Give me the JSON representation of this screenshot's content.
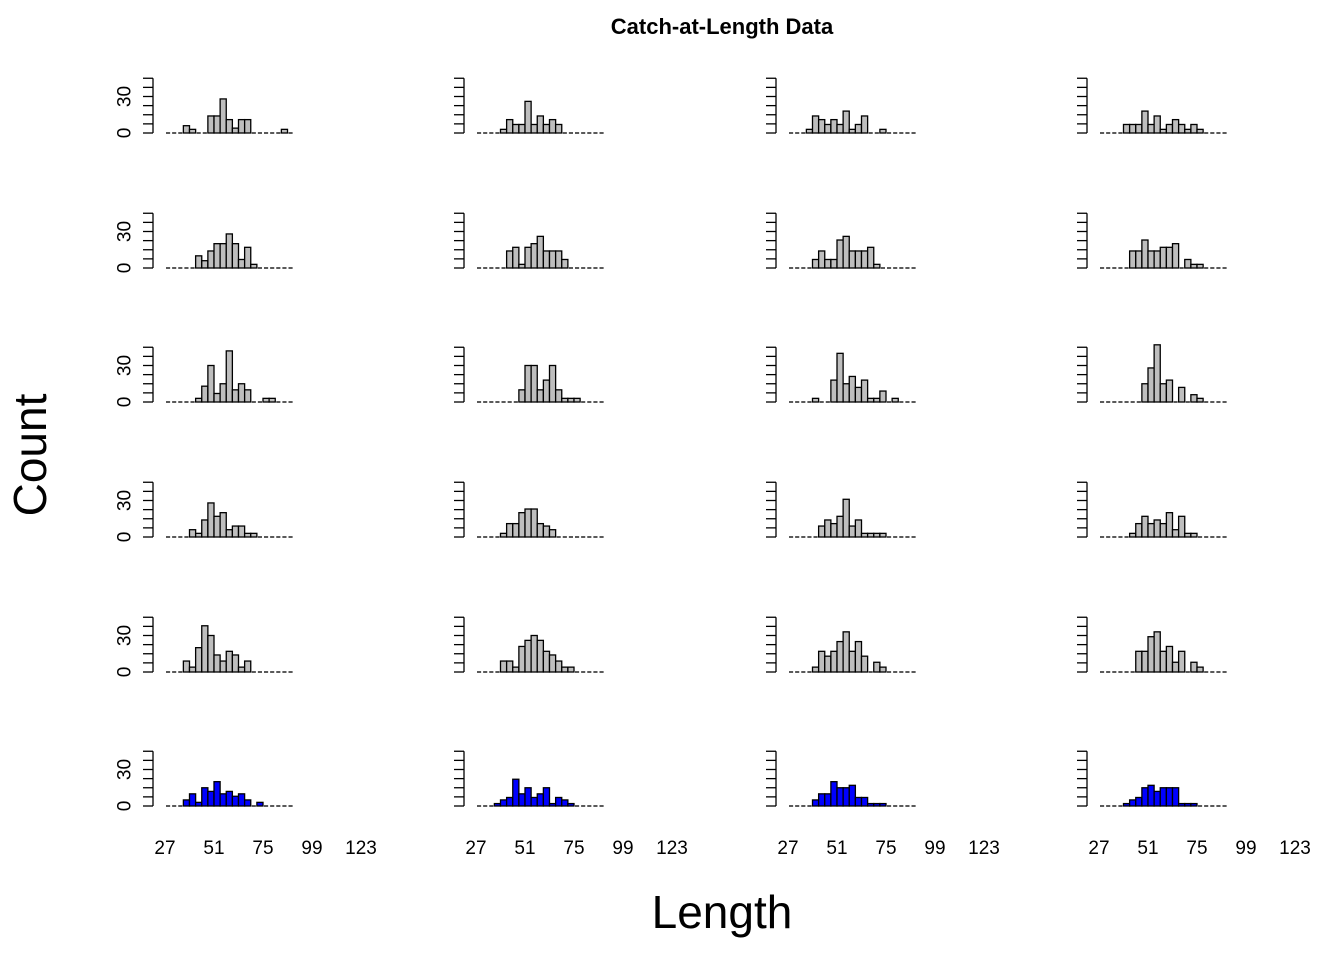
{
  "chart_data": {
    "type": "bar",
    "title": "Catch-at-Length Data",
    "xlabel": "Length",
    "ylabel": "Count",
    "layout": {
      "rows": 6,
      "cols": 4
    },
    "bin_width": 3,
    "xlim": [
      27,
      123
    ],
    "x_ticks": [
      "27",
      "51",
      "75",
      "99",
      "123"
    ],
    "y_ticks": [
      "0",
      "30"
    ],
    "ylim": [
      0,
      45
    ],
    "default_color": "#bebebe",
    "highlight_color": "#0000ff",
    "highlight_row": 6,
    "panels": [
      {
        "row": 1,
        "col": 1,
        "start": 30,
        "values": [
          0,
          0,
          6,
          3,
          0,
          0,
          14,
          14,
          28,
          11,
          4,
          11,
          11,
          0,
          0,
          0,
          0,
          0,
          3,
          0
        ]
      },
      {
        "row": 1,
        "col": 2,
        "start": 30,
        "values": [
          0,
          0,
          0,
          3,
          11,
          7,
          7,
          26,
          7,
          14,
          7,
          11,
          7,
          0,
          0,
          0,
          0,
          0,
          0,
          0
        ]
      },
      {
        "row": 1,
        "col": 3,
        "start": 30,
        "values": [
          0,
          0,
          3,
          14,
          11,
          7,
          11,
          7,
          18,
          3,
          7,
          14,
          0,
          0,
          3,
          0,
          0,
          0,
          0,
          0
        ]
      },
      {
        "row": 1,
        "col": 4,
        "start": 30,
        "values": [
          0,
          0,
          0,
          7,
          7,
          7,
          18,
          7,
          14,
          3,
          7,
          11,
          7,
          3,
          7,
          3,
          0,
          0,
          0,
          0
        ]
      },
      {
        "row": 2,
        "col": 1,
        "start": 30,
        "values": [
          0,
          0,
          0,
          0,
          10,
          6,
          14,
          20,
          20,
          28,
          20,
          7,
          17,
          3,
          0,
          0,
          0,
          0,
          0,
          0
        ]
      },
      {
        "row": 2,
        "col": 2,
        "start": 30,
        "values": [
          0,
          0,
          0,
          0,
          14,
          17,
          3,
          17,
          20,
          26,
          14,
          14,
          14,
          7,
          0,
          0,
          0,
          0,
          0,
          0
        ]
      },
      {
        "row": 2,
        "col": 3,
        "start": 30,
        "values": [
          0,
          0,
          0,
          7,
          14,
          7,
          7,
          23,
          26,
          14,
          14,
          14,
          17,
          3,
          0,
          0,
          0,
          0,
          0,
          0
        ]
      },
      {
        "row": 2,
        "col": 4,
        "start": 30,
        "values": [
          0,
          0,
          0,
          0,
          14,
          14,
          23,
          14,
          14,
          17,
          17,
          20,
          0,
          7,
          3,
          3,
          0,
          0,
          0,
          0
        ]
      },
      {
        "row": 3,
        "col": 1,
        "start": 30,
        "values": [
          0,
          0,
          0,
          0,
          3,
          13,
          30,
          7,
          15,
          42,
          10,
          15,
          10,
          0,
          0,
          3,
          3,
          0,
          0,
          0
        ]
      },
      {
        "row": 3,
        "col": 2,
        "start": 30,
        "values": [
          0,
          0,
          0,
          0,
          0,
          0,
          10,
          30,
          30,
          10,
          18,
          30,
          10,
          3,
          3,
          3,
          0,
          0,
          0,
          0
        ]
      },
      {
        "row": 3,
        "col": 3,
        "start": 30,
        "values": [
          0,
          0,
          0,
          3,
          0,
          0,
          18,
          40,
          15,
          21,
          12,
          18,
          3,
          3,
          9,
          0,
          3,
          0,
          0,
          0
        ]
      },
      {
        "row": 3,
        "col": 4,
        "start": 30,
        "values": [
          0,
          0,
          0,
          0,
          0,
          0,
          15,
          28,
          47,
          15,
          18,
          0,
          12,
          0,
          6,
          3,
          0,
          0,
          0,
          0
        ]
      },
      {
        "row": 4,
        "col": 1,
        "start": 30,
        "values": [
          0,
          0,
          0,
          6,
          3,
          14,
          28,
          17,
          20,
          6,
          9,
          9,
          3,
          3,
          0,
          0,
          0,
          0,
          0,
          0
        ]
      },
      {
        "row": 4,
        "col": 2,
        "start": 30,
        "values": [
          0,
          0,
          0,
          3,
          11,
          11,
          20,
          23,
          23,
          11,
          9,
          6,
          0,
          0,
          0,
          0,
          0,
          0,
          0,
          0
        ]
      },
      {
        "row": 4,
        "col": 3,
        "start": 30,
        "values": [
          0,
          0,
          0,
          0,
          9,
          14,
          11,
          17,
          31,
          9,
          14,
          3,
          3,
          3,
          3,
          0,
          0,
          0,
          0,
          0
        ]
      },
      {
        "row": 4,
        "col": 4,
        "start": 30,
        "values": [
          0,
          0,
          0,
          0,
          3,
          11,
          17,
          11,
          14,
          11,
          20,
          6,
          17,
          3,
          3,
          0,
          0,
          0,
          0,
          0
        ]
      },
      {
        "row": 5,
        "col": 1,
        "start": 30,
        "values": [
          0,
          0,
          9,
          4,
          20,
          38,
          30,
          14,
          9,
          17,
          14,
          4,
          9,
          0,
          0,
          0,
          0,
          0,
          0,
          0
        ]
      },
      {
        "row": 5,
        "col": 2,
        "start": 30,
        "values": [
          0,
          0,
          0,
          9,
          9,
          4,
          21,
          26,
          30,
          26,
          17,
          14,
          9,
          4,
          4,
          0,
          0,
          0,
          0,
          0
        ]
      },
      {
        "row": 5,
        "col": 3,
        "start": 30,
        "values": [
          0,
          0,
          0,
          4,
          17,
          13,
          17,
          25,
          33,
          17,
          25,
          13,
          0,
          8,
          4,
          0,
          0,
          0,
          0,
          0
        ]
      },
      {
        "row": 5,
        "col": 4,
        "start": 30,
        "values": [
          0,
          0,
          0,
          0,
          0,
          17,
          17,
          29,
          33,
          17,
          21,
          8,
          17,
          0,
          8,
          4,
          0,
          0,
          0,
          0
        ]
      },
      {
        "row": 6,
        "col": 1,
        "start": 30,
        "values": [
          0,
          0,
          5,
          10,
          3,
          15,
          12,
          20,
          10,
          12,
          8,
          10,
          5,
          0,
          3,
          0,
          0,
          0,
          0,
          0
        ]
      },
      {
        "row": 6,
        "col": 2,
        "start": 30,
        "values": [
          0,
          0,
          2,
          5,
          7,
          22,
          10,
          15,
          7,
          10,
          15,
          2,
          7,
          5,
          2,
          0,
          0,
          0,
          0,
          0
        ]
      },
      {
        "row": 6,
        "col": 3,
        "start": 30,
        "values": [
          0,
          0,
          0,
          5,
          10,
          10,
          20,
          15,
          15,
          17,
          7,
          7,
          2,
          2,
          2,
          0,
          0,
          0,
          0,
          0
        ]
      },
      {
        "row": 6,
        "col": 4,
        "start": 30,
        "values": [
          0,
          0,
          0,
          2,
          5,
          7,
          15,
          17,
          12,
          15,
          15,
          15,
          2,
          2,
          2,
          0,
          0,
          0,
          0,
          0
        ]
      }
    ]
  }
}
